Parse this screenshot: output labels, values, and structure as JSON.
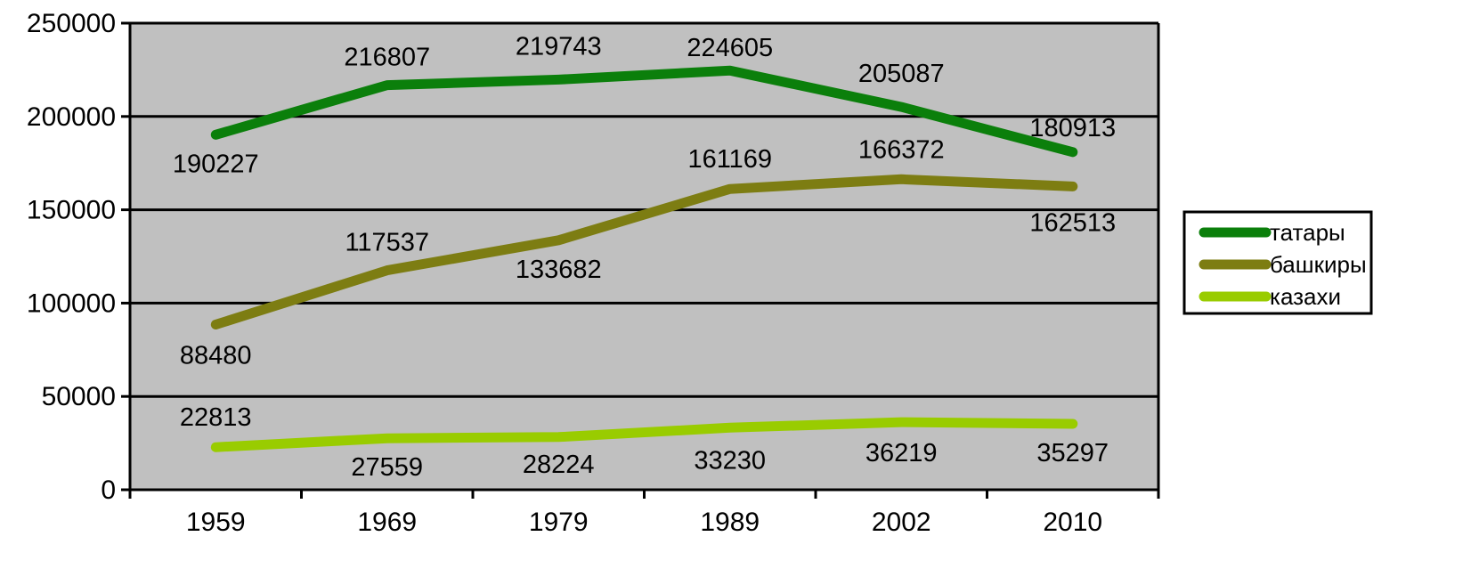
{
  "chart_data": {
    "type": "line",
    "title": "",
    "xlabel": "",
    "ylabel": "",
    "categories": [
      "1959",
      "1969",
      "1979",
      "1989",
      "2002",
      "2010"
    ],
    "ylim": [
      0,
      250000
    ],
    "yticks": [
      "0",
      "50000",
      "100000",
      "150000",
      "200000",
      "250000"
    ],
    "grid": true,
    "plot_background": "#c0c0c0",
    "legend_position": "right",
    "series": [
      {
        "name": "татары",
        "color": "#0b7f0b",
        "values": [
          190227,
          216807,
          219743,
          224605,
          205087,
          180913
        ],
        "labels": [
          "190227",
          "216807",
          "219743",
          "224605",
          "205087",
          "180913"
        ]
      },
      {
        "name": "башкиры",
        "color": "#7d7d12",
        "values": [
          88480,
          117537,
          133682,
          161169,
          166372,
          162513
        ],
        "labels": [
          "88480",
          "117537",
          "133682",
          "161169",
          "166372",
          "162513"
        ]
      },
      {
        "name": "казахи",
        "color": "#99cc00",
        "values": [
          22813,
          27559,
          28224,
          33230,
          36219,
          35297
        ],
        "labels": [
          "22813",
          "27559",
          "28224",
          "33230",
          "36219",
          "35297"
        ]
      }
    ]
  }
}
